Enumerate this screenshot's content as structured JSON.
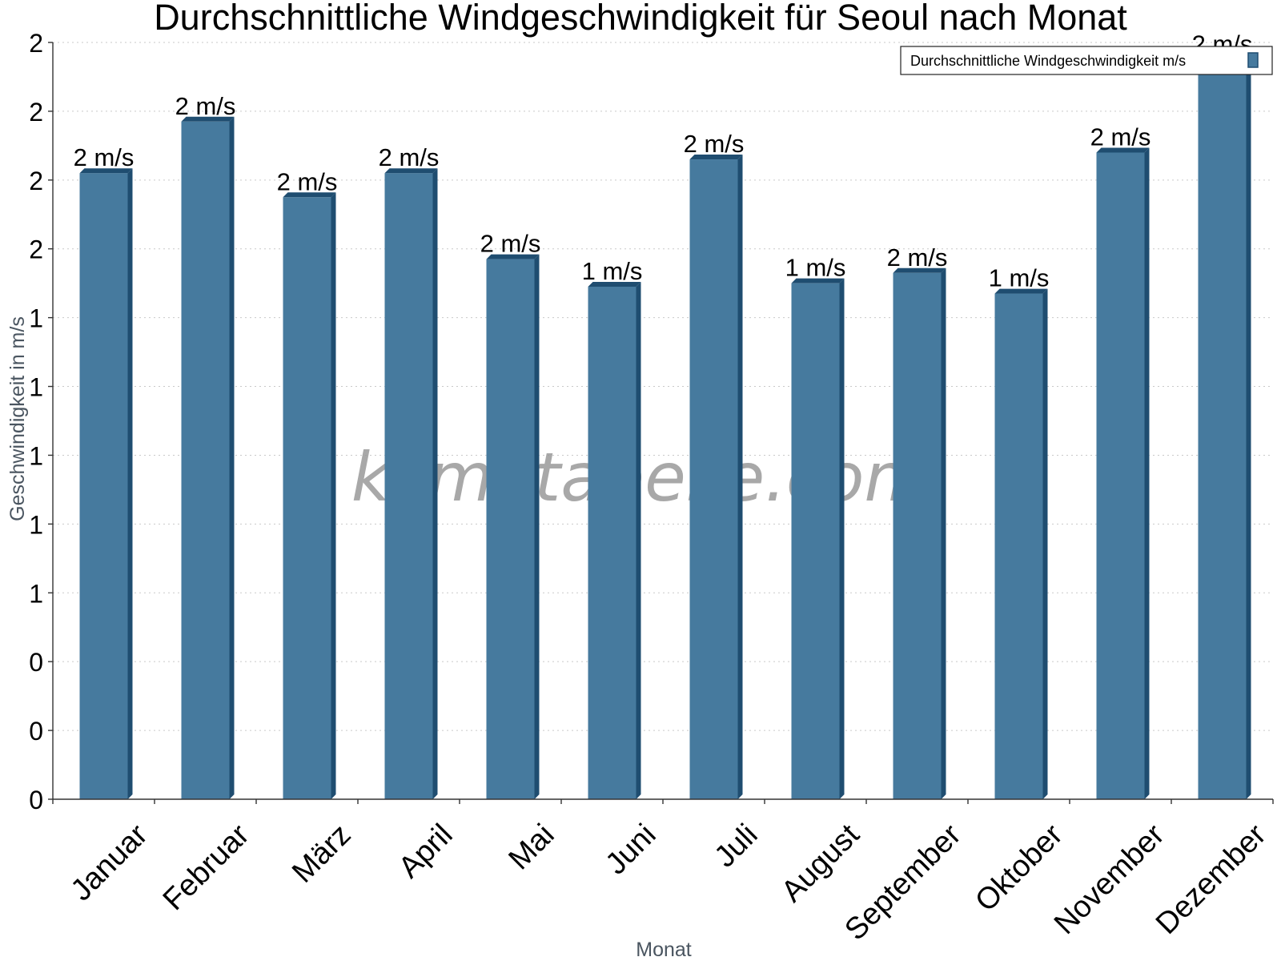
{
  "chart_data": {
    "type": "bar",
    "title": "Durchschnittliche Windgeschwindigkeit für Seoul nach Monat",
    "xlabel": "Monat",
    "ylabel": "Geschwindigkeit in m/s",
    "categories": [
      "Januar",
      "Februar",
      "März",
      "April",
      "Mai",
      "Juni",
      "Juli",
      "August",
      "September",
      "Oktober",
      "November",
      "Dezember"
    ],
    "series": [
      {
        "name": "Durchschnittliche Windgeschwindigkeit m/s",
        "values": [
          1.82,
          1.97,
          1.75,
          1.82,
          1.57,
          1.49,
          1.86,
          1.5,
          1.53,
          1.47,
          1.88,
          2.15
        ],
        "labels": [
          "2 m/s",
          "2 m/s",
          "2 m/s",
          "2 m/s",
          "2 m/s",
          "1 m/s",
          "2 m/s",
          "1 m/s",
          "2 m/s",
          "1 m/s",
          "2 m/s",
          "2 m/s"
        ],
        "color": "#467a9e",
        "shade_color": "#1f4d70"
      }
    ],
    "ylim": [
      0,
      2.2
    ],
    "yticks": [
      0,
      0.2,
      0.4,
      0.6,
      0.8,
      1.0,
      1.2,
      1.4,
      1.6,
      1.8,
      2.0,
      2.2
    ],
    "ytick_labels": [
      "0",
      "0",
      "0",
      "1",
      "1",
      "1",
      "1",
      "1",
      "2",
      "2",
      "2",
      "2"
    ],
    "grid": true,
    "legend_position": "top-right",
    "watermark": "klimatabelle.com"
  }
}
